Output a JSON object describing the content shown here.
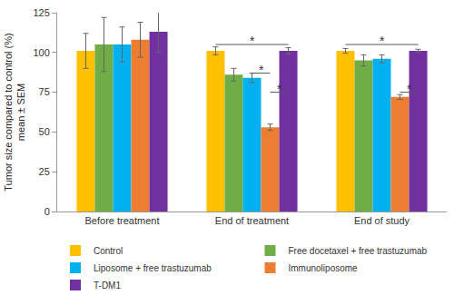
{
  "chart_data": {
    "type": "bar",
    "y_label": "Tumor size compared to control (%)\nmean ± SEM",
    "categories": [
      "Before treatment",
      "End of treatment",
      "End of study"
    ],
    "series": [
      {
        "name": "Control",
        "color": "#FFC000",
        "values": [
          101,
          101,
          101
        ],
        "errors": [
          11,
          2.5,
          1.5
        ]
      },
      {
        "name": "Free docetaxel + free trastuzumab",
        "color": "#70AD47",
        "values": [
          105,
          86,
          95
        ],
        "errors": [
          17,
          4,
          3.5
        ]
      },
      {
        "name": "Liposome + free trastuzumab",
        "color": "#00B0F0",
        "values": [
          105,
          84,
          96
        ],
        "errors": [
          11,
          3,
          2.5
        ]
      },
      {
        "name": "Immunoliposome",
        "color": "#ED7D31",
        "values": [
          108,
          53,
          72
        ],
        "errors": [
          11,
          2,
          1.5
        ]
      },
      {
        "name": "T-DM1",
        "color": "#7030A0",
        "values": [
          113,
          101,
          101
        ],
        "errors": [
          13,
          2,
          1
        ]
      }
    ],
    "ylim": [
      0,
      125
    ],
    "yticks": [
      0,
      25,
      50,
      75,
      100,
      125
    ],
    "grid": false,
    "legend": "bottom",
    "annotations": [
      {
        "category": "End of treatment",
        "from": "Control",
        "to": "T-DM1",
        "y": 105,
        "text": "*"
      },
      {
        "category": "End of treatment",
        "from": "Liposome + free trastuzumab",
        "to": "Immunoliposome",
        "y": 87,
        "text": "*"
      },
      {
        "category": "End of treatment",
        "from": "Immunoliposome",
        "to": "T-DM1",
        "y": 75,
        "text": "*"
      },
      {
        "category": "End of study",
        "from": "Control",
        "to": "T-DM1",
        "y": 105,
        "text": "*"
      },
      {
        "category": "End of study",
        "from": "Immunoliposome",
        "to": "T-DM1",
        "y": 75,
        "text": "*"
      }
    ]
  }
}
